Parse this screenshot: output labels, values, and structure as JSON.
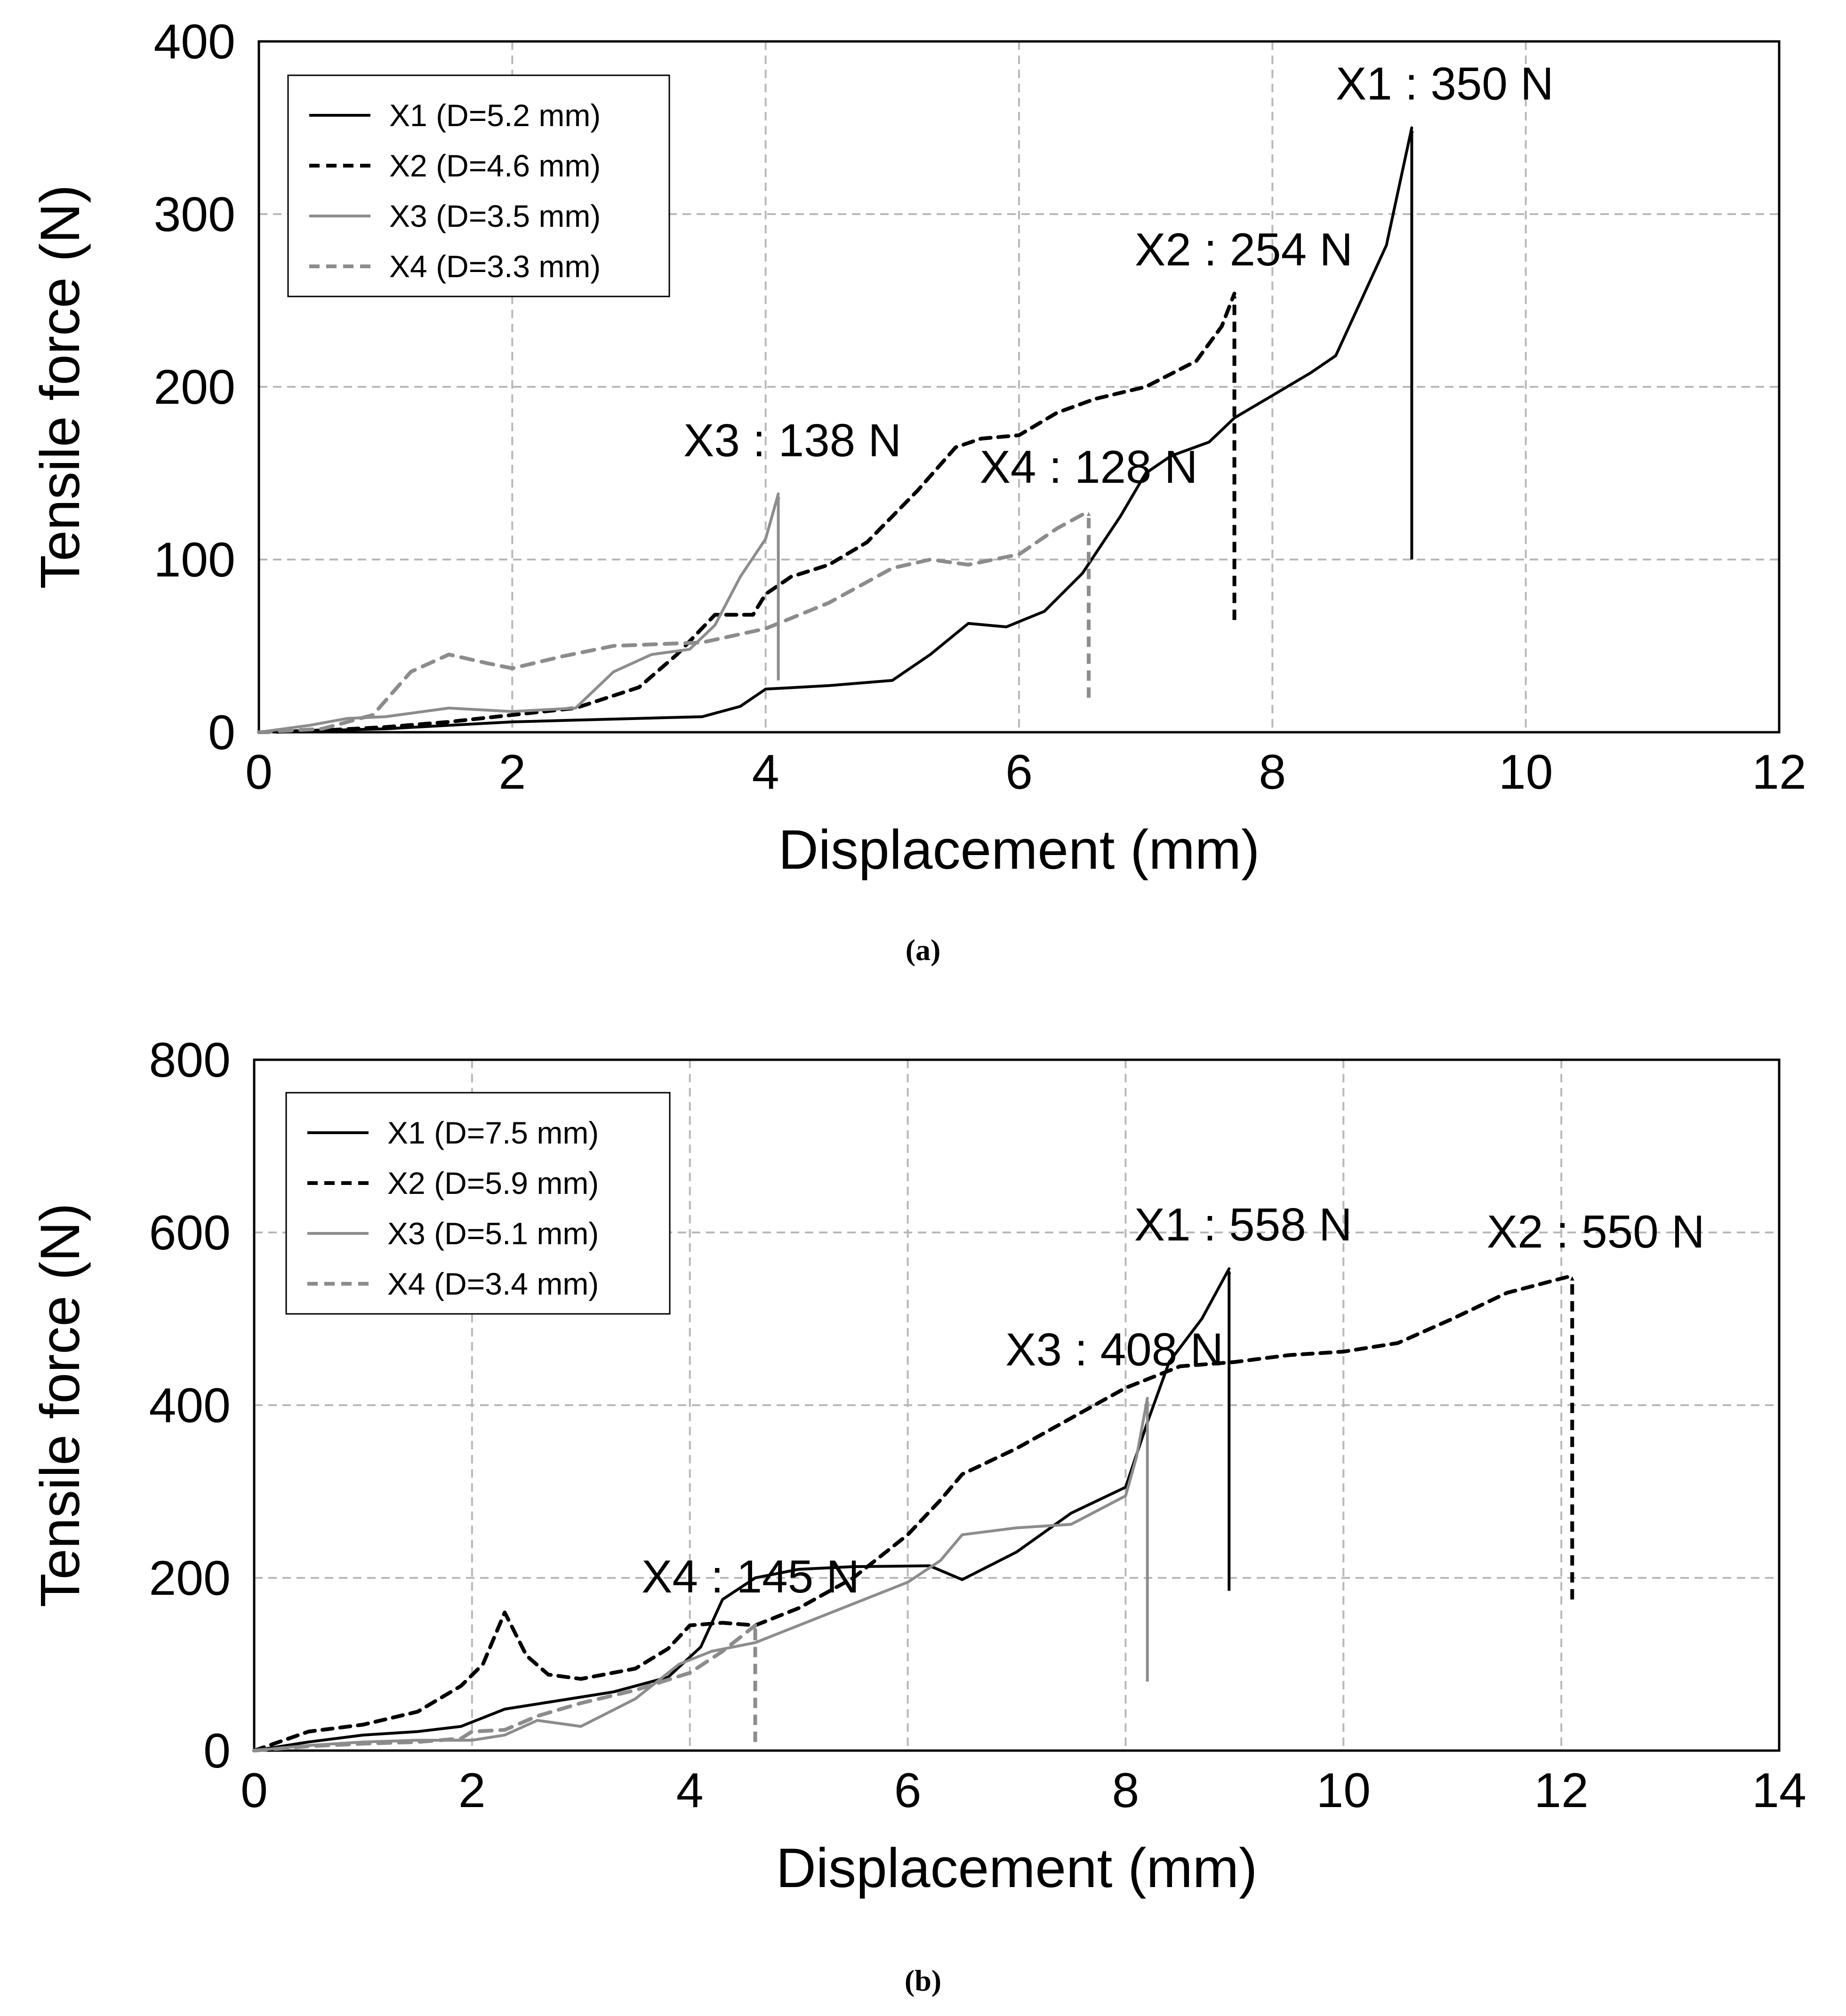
{
  "colors": {
    "x1": "#000000",
    "x2": "#000000",
    "x3": "#8c8c8c",
    "x4": "#8c8c8c",
    "grid": "#b8b8b8",
    "frame": "#000000"
  },
  "chart_data": [
    {
      "type": "line",
      "caption": "(a)",
      "xlabel": "Displacement (mm)",
      "ylabel": "Tensile force (N)",
      "xlim": [
        0,
        12
      ],
      "ylim": [
        0,
        400
      ],
      "xticks": [
        0,
        2,
        4,
        6,
        8,
        10,
        12
      ],
      "yticks": [
        0,
        100,
        200,
        300,
        400
      ],
      "xtick_labels": [
        "0",
        "2",
        "4",
        "6",
        "8",
        "10",
        "12"
      ],
      "ytick_labels": [
        "0",
        "100",
        "200",
        "300",
        "400"
      ],
      "grid": true,
      "legend_position": "top-left",
      "series": [
        {
          "id": "x1",
          "name": "X1 (D=5.2 mm)",
          "style": "solid",
          "points": [
            [
              0,
              0
            ],
            [
              0.5,
              1
            ],
            [
              1,
              2
            ],
            [
              1.5,
              4
            ],
            [
              2,
              6
            ],
            [
              2.5,
              7
            ],
            [
              3,
              8
            ],
            [
              3.5,
              9
            ],
            [
              3.8,
              15
            ],
            [
              4,
              25
            ],
            [
              4.5,
              27
            ],
            [
              5,
              30
            ],
            [
              5.3,
              45
            ],
            [
              5.6,
              63
            ],
            [
              5.9,
              61
            ],
            [
              6.2,
              70
            ],
            [
              6.5,
              92
            ],
            [
              6.8,
              125
            ],
            [
              7,
              150
            ],
            [
              7.2,
              160
            ],
            [
              7.5,
              168
            ],
            [
              7.7,
              182
            ],
            [
              8,
              195
            ],
            [
              8.3,
              208
            ],
            [
              8.5,
              218
            ],
            [
              8.7,
              250
            ],
            [
              8.9,
              282
            ],
            [
              9.1,
              350
            ]
          ],
          "peak": {
            "x": 9.1,
            "y": 350,
            "label": "X1 : 350 N",
            "arrow_from": 100
          }
        },
        {
          "id": "x2",
          "name": "X2 (D=4.6 mm)",
          "style": "dashed",
          "points": [
            [
              0,
              0
            ],
            [
              0.5,
              1
            ],
            [
              1,
              3
            ],
            [
              1.5,
              6
            ],
            [
              2,
              10
            ],
            [
              2.5,
              14
            ],
            [
              3,
              26
            ],
            [
              3.3,
              45
            ],
            [
              3.6,
              68
            ],
            [
              3.9,
              68
            ],
            [
              4,
              80
            ],
            [
              4.2,
              90
            ],
            [
              4.5,
              97
            ],
            [
              4.8,
              110
            ],
            [
              5,
              125
            ],
            [
              5.2,
              140
            ],
            [
              5.5,
              165
            ],
            [
              5.7,
              170
            ],
            [
              6,
              172
            ],
            [
              6.3,
              185
            ],
            [
              6.6,
              193
            ],
            [
              7,
              200
            ],
            [
              7.4,
              215
            ],
            [
              7.6,
              235
            ],
            [
              7.7,
              254
            ]
          ],
          "peak": {
            "x": 7.7,
            "y": 254,
            "label": "X2 : 254 N",
            "arrow_from": 65
          }
        },
        {
          "id": "x3",
          "name": "X3 (D=3.5 mm)",
          "style": "solid",
          "points": [
            [
              0,
              0
            ],
            [
              0.4,
              4
            ],
            [
              0.7,
              8
            ],
            [
              1,
              9
            ],
            [
              1.5,
              14
            ],
            [
              2,
              12
            ],
            [
              2.5,
              14
            ],
            [
              2.8,
              35
            ],
            [
              3.1,
              45
            ],
            [
              3.4,
              48
            ],
            [
              3.6,
              62
            ],
            [
              3.8,
              90
            ],
            [
              4,
              112
            ],
            [
              4.1,
              138
            ]
          ],
          "peak": {
            "x": 4.1,
            "y": 138,
            "label": "X3 : 138 N",
            "arrow_from": 30
          }
        },
        {
          "id": "x4",
          "name": "X4 (D=3.3 mm)",
          "style": "dashed",
          "points": [
            [
              0,
              0
            ],
            [
              0.5,
              2
            ],
            [
              0.9,
              10
            ],
            [
              1.2,
              35
            ],
            [
              1.5,
              45
            ],
            [
              1.8,
              40
            ],
            [
              2,
              37
            ],
            [
              2.4,
              44
            ],
            [
              2.8,
              50
            ],
            [
              3.5,
              52
            ],
            [
              4,
              60
            ],
            [
              4.5,
              75
            ],
            [
              5,
              95
            ],
            [
              5.3,
              100
            ],
            [
              5.6,
              97
            ],
            [
              6,
              103
            ],
            [
              6.3,
              118
            ],
            [
              6.55,
              128
            ]
          ],
          "peak": {
            "x": 6.55,
            "y": 128,
            "label": "X4 : 128 N",
            "arrow_from": 20
          }
        }
      ]
    },
    {
      "type": "line",
      "caption": "(b)",
      "xlabel": "Displacement (mm)",
      "ylabel": "Tensile force (N)",
      "xlim": [
        0,
        14
      ],
      "ylim": [
        0,
        800
      ],
      "xticks": [
        0,
        2,
        4,
        6,
        8,
        10,
        12,
        14
      ],
      "yticks": [
        0,
        200,
        400,
        600,
        800
      ],
      "xtick_labels": [
        "0",
        "2",
        "4",
        "6",
        "8",
        "10",
        "12",
        "14"
      ],
      "ytick_labels": [
        "0",
        "200",
        "400",
        "600",
        "800"
      ],
      "grid": true,
      "legend_position": "top-left",
      "series": [
        {
          "id": "x1",
          "name": "X1 (D=7.5 mm)",
          "style": "solid",
          "points": [
            [
              0,
              0
            ],
            [
              0.5,
              10
            ],
            [
              1,
              18
            ],
            [
              1.5,
              22
            ],
            [
              1.9,
              28
            ],
            [
              2.3,
              48
            ],
            [
              2.8,
              58
            ],
            [
              3.3,
              68
            ],
            [
              3.8,
              85
            ],
            [
              4.1,
              120
            ],
            [
              4.3,
              175
            ],
            [
              4.6,
              200
            ],
            [
              5,
              210
            ],
            [
              5.5,
              213
            ],
            [
              6.2,
              214
            ],
            [
              6.5,
              198
            ],
            [
              7,
              230
            ],
            [
              7.5,
              275
            ],
            [
              8,
              305
            ],
            [
              8.2,
              380
            ],
            [
              8.4,
              450
            ],
            [
              8.7,
              500
            ],
            [
              8.95,
              558
            ]
          ],
          "peak": {
            "x": 8.95,
            "y": 558,
            "label": "X1 : 558 N",
            "arrow_from": 185
          }
        },
        {
          "id": "x2",
          "name": "X2 (D=5.9 mm)",
          "style": "dashed",
          "points": [
            [
              0,
              0
            ],
            [
              0.5,
              22
            ],
            [
              1,
              30
            ],
            [
              1.5,
              45
            ],
            [
              1.9,
              75
            ],
            [
              2.1,
              100
            ],
            [
              2.3,
              160
            ],
            [
              2.5,
              110
            ],
            [
              2.7,
              88
            ],
            [
              3,
              83
            ],
            [
              3.5,
              95
            ],
            [
              3.8,
              118
            ],
            [
              4,
              145
            ],
            [
              4.3,
              148
            ],
            [
              4.6,
              145
            ],
            [
              5,
              165
            ],
            [
              5.5,
              200
            ],
            [
              6,
              250
            ],
            [
              6.3,
              290
            ],
            [
              6.5,
              320
            ],
            [
              7,
              350
            ],
            [
              7.5,
              385
            ],
            [
              8,
              420
            ],
            [
              8.5,
              445
            ],
            [
              9,
              450
            ],
            [
              9.5,
              458
            ],
            [
              10,
              462
            ],
            [
              10.5,
              472
            ],
            [
              11,
              500
            ],
            [
              11.5,
              530
            ],
            [
              12.1,
              550
            ]
          ],
          "peak": {
            "x": 12.1,
            "y": 550,
            "label": "X2 : 550 N",
            "arrow_from": 175
          }
        },
        {
          "id": "x3",
          "name": "X3 (D=5.1 mm)",
          "style": "solid",
          "points": [
            [
              0,
              0
            ],
            [
              0.5,
              6
            ],
            [
              1,
              10
            ],
            [
              1.5,
              12
            ],
            [
              2,
              12
            ],
            [
              2.3,
              18
            ],
            [
              2.6,
              35
            ],
            [
              3,
              28
            ],
            [
              3.5,
              60
            ],
            [
              3.9,
              100
            ],
            [
              4.2,
              115
            ],
            [
              4.6,
              125
            ],
            [
              5,
              145
            ],
            [
              5.5,
              170
            ],
            [
              6,
              195
            ],
            [
              6.3,
              220
            ],
            [
              6.5,
              250
            ],
            [
              7,
              258
            ],
            [
              7.5,
              262
            ],
            [
              8,
              295
            ],
            [
              8.1,
              340
            ],
            [
              8.2,
              408
            ]
          ],
          "peak": {
            "x": 8.2,
            "y": 408,
            "label": "X3 : 408 N",
            "arrow_from": 80
          }
        },
        {
          "id": "x4",
          "name": "X4 (D=3.4 mm)",
          "style": "dashed",
          "points": [
            [
              0,
              0
            ],
            [
              0.5,
              5
            ],
            [
              1,
              8
            ],
            [
              1.5,
              10
            ],
            [
              1.9,
              14
            ],
            [
              2,
              22
            ],
            [
              2.3,
              24
            ],
            [
              2.6,
              40
            ],
            [
              3,
              55
            ],
            [
              3.5,
              70
            ],
            [
              4,
              90
            ],
            [
              4.3,
              115
            ],
            [
              4.6,
              145
            ]
          ],
          "peak": {
            "x": 4.6,
            "y": 145,
            "label": "X4 : 145 N",
            "arrow_from": 10
          }
        }
      ]
    }
  ]
}
